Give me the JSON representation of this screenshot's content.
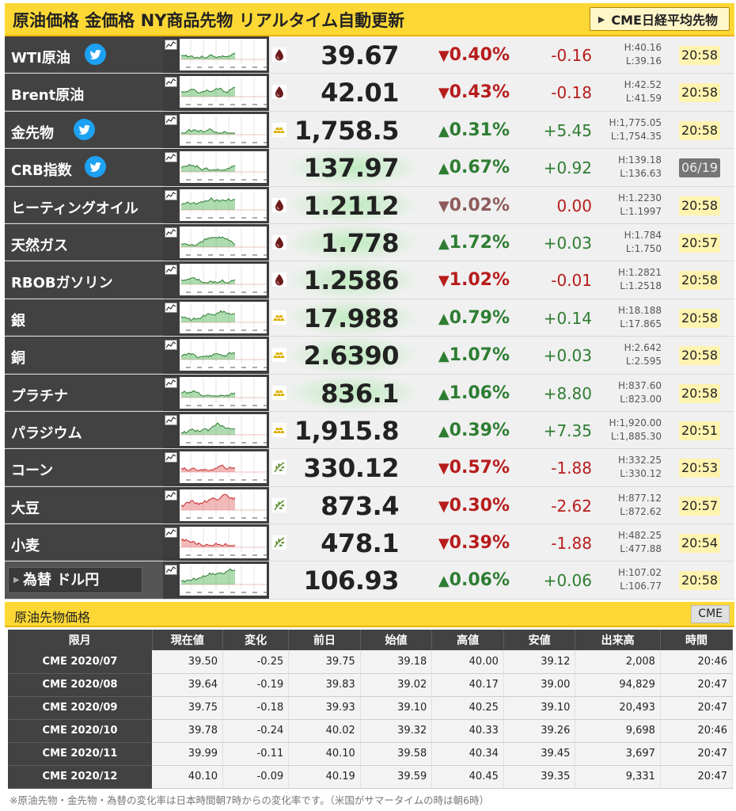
{
  "header": {
    "title": "原油価格 金価格 NY商品先物 リアルタイム自動更新",
    "cme_button_label": "CME日経平均先物"
  },
  "colors": {
    "accent": "#fdd835",
    "up": "#2e7d32",
    "down": "#b71c1c",
    "dark": "#424242"
  },
  "commodities": [
    {
      "name": "WTI原油",
      "twitter": true,
      "category_icon": "oil-drop-icon",
      "price": "39.67",
      "pct": "0.40%",
      "dir": "down",
      "change": "-0.16",
      "high": "H:40.16",
      "low": "L:39.16",
      "time": "20:58",
      "time_style": "normal"
    },
    {
      "name": "Brent原油",
      "twitter": false,
      "category_icon": "oil-drop-icon",
      "price": "42.01",
      "pct": "0.43%",
      "dir": "down",
      "change": "-0.18",
      "high": "H:42.52",
      "low": "L:41.59",
      "time": "20:58",
      "time_style": "normal"
    },
    {
      "name": "金先物",
      "twitter": true,
      "category_icon": "gold-bar-icon",
      "price": "1,758.5",
      "pct": "0.31%",
      "dir": "up",
      "change": "+5.45",
      "high": "H:1,775.05",
      "low": "L:1,754.35",
      "time": "20:58",
      "time_style": "normal"
    },
    {
      "name": "CRB指数",
      "twitter": true,
      "category_icon": "",
      "price": "137.97",
      "pct": "0.67%",
      "dir": "up",
      "change": "+0.92",
      "high": "H:139.18",
      "low": "L:136.63",
      "time": "06/19",
      "time_style": "gray"
    },
    {
      "name": "ヒーティングオイル",
      "twitter": false,
      "category_icon": "oil-drop-icon",
      "price": "1.2112",
      "pct": "0.02%",
      "dir": "down",
      "change": "0.00",
      "high": "H:1.2230",
      "low": "L:1.1997",
      "time": "20:58",
      "time_style": "normal"
    },
    {
      "name": "天然ガス",
      "twitter": false,
      "category_icon": "oil-drop-icon",
      "price": "1.778",
      "pct": "1.72%",
      "dir": "up",
      "change": "+0.03",
      "high": "H:1.784",
      "low": "L:1.750",
      "time": "20:57",
      "time_style": "normal"
    },
    {
      "name": "RBOBガソリン",
      "twitter": false,
      "category_icon": "oil-drop-icon",
      "price": "1.2586",
      "pct": "1.02%",
      "dir": "down",
      "change": "-0.01",
      "high": "H:1.2821",
      "low": "L:1.2518",
      "time": "20:58",
      "time_style": "normal"
    },
    {
      "name": "銀",
      "twitter": false,
      "category_icon": "gold-bar-icon",
      "price": "17.988",
      "pct": "0.79%",
      "dir": "up",
      "change": "+0.14",
      "high": "H:18.188",
      "low": "L:17.865",
      "time": "20:58",
      "time_style": "normal"
    },
    {
      "name": "銅",
      "twitter": false,
      "category_icon": "gold-bar-icon",
      "price": "2.6390",
      "pct": "1.07%",
      "dir": "up",
      "change": "+0.03",
      "high": "H:2.642",
      "low": "L:2.595",
      "time": "20:58",
      "time_style": "normal"
    },
    {
      "name": "プラチナ",
      "twitter": false,
      "category_icon": "gold-bar-icon",
      "price": "836.1",
      "pct": "1.06%",
      "dir": "up",
      "change": "+8.80",
      "high": "H:837.60",
      "low": "L:823.00",
      "time": "20:58",
      "time_style": "normal"
    },
    {
      "name": "パラジウム",
      "twitter": false,
      "category_icon": "gold-bar-icon",
      "price": "1,915.8",
      "pct": "0.39%",
      "dir": "up",
      "change": "+7.35",
      "high": "H:1,920.00",
      "low": "L:1,885.30",
      "time": "20:51",
      "time_style": "normal"
    },
    {
      "name": "コーン",
      "twitter": false,
      "category_icon": "leaf-icon",
      "price": "330.12",
      "pct": "0.57%",
      "dir": "down",
      "change": "-1.88",
      "high": "H:332.25",
      "low": "L:330.12",
      "time": "20:53",
      "time_style": "normal"
    },
    {
      "name": "大豆",
      "twitter": false,
      "category_icon": "leaf-icon",
      "price": "873.4",
      "pct": "0.30%",
      "dir": "down",
      "change": "-2.62",
      "high": "H:877.12",
      "low": "L:872.62",
      "time": "20:57",
      "time_style": "normal"
    },
    {
      "name": "小麦",
      "twitter": false,
      "category_icon": "leaf-icon",
      "price": "478.1",
      "pct": "0.39%",
      "dir": "down",
      "change": "-1.88",
      "high": "H:482.25",
      "low": "L:477.88",
      "time": "20:54",
      "time_style": "normal"
    },
    {
      "name": "為替 ドル円",
      "twitter": false,
      "category_icon": "",
      "price": "106.93",
      "pct": "0.06%",
      "dir": "up",
      "change": "+0.06",
      "high": "H:107.02",
      "low": "L:106.77",
      "time": "20:58",
      "time_style": "normal",
      "fx": true
    }
  ],
  "futures": {
    "title": "原油先物価格",
    "cme_label": "CME",
    "columns": [
      "限月",
      "現在値",
      "変化",
      "前日",
      "始値",
      "高値",
      "安値",
      "出来高",
      "時間"
    ],
    "rows": [
      [
        "CME 2020/07",
        "39.50",
        "-0.25",
        "39.75",
        "39.18",
        "40.00",
        "39.12",
        "2,008",
        "20:46"
      ],
      [
        "CME 2020/08",
        "39.64",
        "-0.19",
        "39.83",
        "39.02",
        "40.17",
        "39.00",
        "94,829",
        "20:47"
      ],
      [
        "CME 2020/09",
        "39.75",
        "-0.18",
        "39.93",
        "39.10",
        "40.25",
        "39.10",
        "20,493",
        "20:47"
      ],
      [
        "CME 2020/10",
        "39.78",
        "-0.24",
        "40.02",
        "39.32",
        "40.33",
        "39.26",
        "9,698",
        "20:46"
      ],
      [
        "CME 2020/11",
        "39.99",
        "-0.11",
        "40.10",
        "39.58",
        "40.34",
        "39.45",
        "3,697",
        "20:47"
      ],
      [
        "CME 2020/12",
        "40.10",
        "-0.09",
        "40.19",
        "39.59",
        "40.45",
        "39.35",
        "9,331",
        "20:47"
      ]
    ]
  },
  "footnote": "※原油先物・金先物・為替の変化率は日本時間朝7時からの変化率です。（米国がサマータイムの時は朝6時）"
}
